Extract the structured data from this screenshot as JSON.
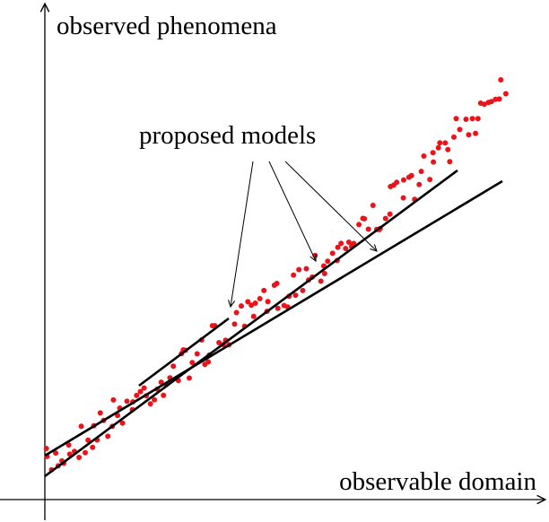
{
  "axes": {
    "y_label": "observed phenomena",
    "x_label": "observable domain"
  },
  "annotation": {
    "label": "proposed models"
  }
}
